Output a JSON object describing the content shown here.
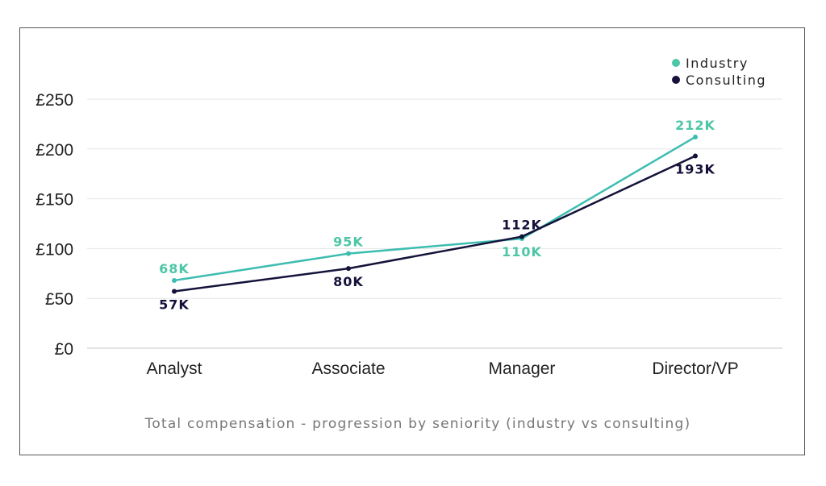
{
  "chart_data": {
    "type": "line",
    "title": "",
    "caption": "Total compensation - progression by seniority (industry vs consulting)",
    "xlabel": "",
    "ylabel": "",
    "categories": [
      "Analyst",
      "Associate",
      "Manager",
      "Director/VP"
    ],
    "ylim": [
      0,
      250
    ],
    "yticks": [
      0,
      50,
      100,
      150,
      200,
      250
    ],
    "ytick_labels": [
      "£0",
      "£50",
      "£100",
      "£150",
      "£200",
      "£250"
    ],
    "grid": true,
    "legend_position": "top-right",
    "series": [
      {
        "name": "Industry",
        "color": "#3dbdb0",
        "label_color": "#4cc6a6",
        "values": [
          68,
          95,
          110,
          212
        ],
        "labels": [
          "68K",
          "95K",
          "110K",
          "212K"
        ]
      },
      {
        "name": "Consulting",
        "color": "#14123a",
        "label_color": "#14123a",
        "values": [
          57,
          80,
          112,
          193
        ],
        "labels": [
          "57K",
          "80K",
          "112K",
          "193K"
        ]
      }
    ]
  }
}
